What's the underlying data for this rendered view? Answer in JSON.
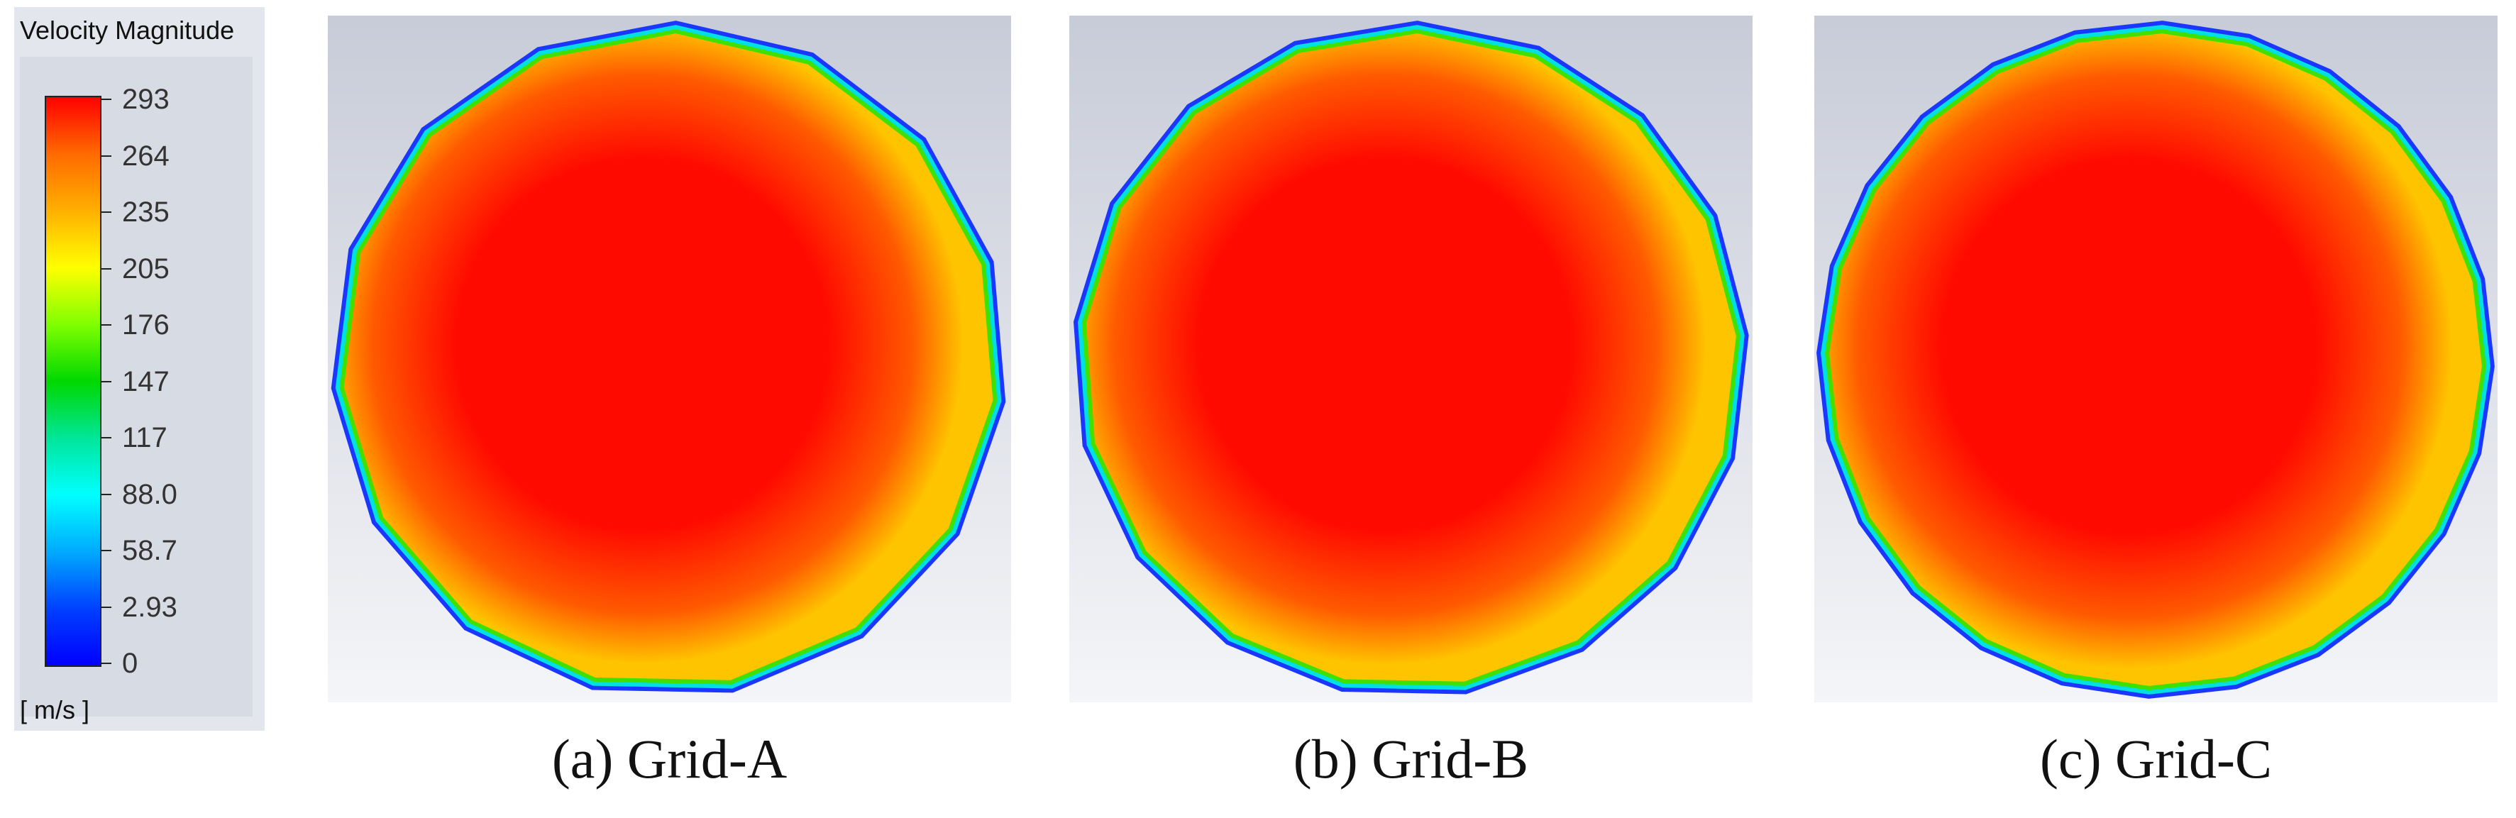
{
  "legend": {
    "title": "Velocity Magnitude",
    "unit": "[ m/s ]",
    "ticks": [
      "293",
      "264",
      "235",
      "205",
      "176",
      "147",
      "117",
      "88.0",
      "58.7",
      "2.93",
      "0"
    ],
    "colors": [
      "#ff0000",
      "#ff6a00",
      "#ffb000",
      "#ffff00",
      "#80ff00",
      "#00d800",
      "#00e69a",
      "#00ffff",
      "#00aaff",
      "#0040ff",
      "#0000ff"
    ]
  },
  "panels": [
    {
      "caption": "(a) Grid-A",
      "sides": 15
    },
    {
      "caption": "(b) Grid-B",
      "sides": 17
    },
    {
      "caption": "(c) Grid-C",
      "sides": 24
    }
  ],
  "colors": {
    "background_top": "#c8ccd8",
    "background_bottom": "#f4f5f8",
    "core": "#ff0a00",
    "mid": "#ff5a00",
    "near_wall": "#ffc400",
    "wall_green": "#40e000",
    "wall_cyan": "#00e0e0",
    "wall_blue": "#1a36ff"
  }
}
